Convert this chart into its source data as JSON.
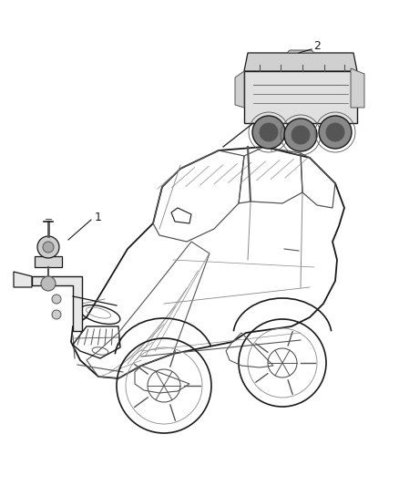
{
  "background_color": "#ffffff",
  "fig_width": 4.38,
  "fig_height": 5.33,
  "dpi": 100,
  "label1": "1",
  "label2": "2",
  "lc": "#1a1a1a",
  "lc_light": "#888888",
  "lc_mid": "#555555"
}
